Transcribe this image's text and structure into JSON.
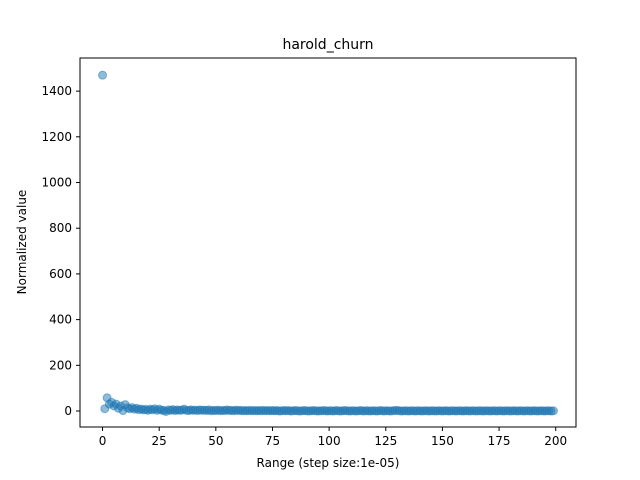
{
  "chart_data": {
    "type": "scatter",
    "title": "harold_churn",
    "xlabel": "Range (step size:1e-05)",
    "ylabel": "Normalized value",
    "xlim": [
      -9.95,
      208.95
    ],
    "ylim": [
      -70,
      1545
    ],
    "xticks": [
      0,
      25,
      50,
      75,
      100,
      125,
      150,
      175,
      200
    ],
    "yticks": [
      0,
      200,
      400,
      600,
      800,
      1000,
      1200,
      1400
    ],
    "grid": false,
    "point_color": "#1f77b4",
    "point_alpha": 0.5,
    "series": [
      {
        "points": [
          [
            0,
            1470
          ],
          [
            1,
            10
          ],
          [
            2,
            58
          ],
          [
            3,
            30
          ],
          [
            4,
            38
          ],
          [
            5,
            22
          ],
          [
            6,
            30
          ],
          [
            7,
            12
          ],
          [
            8,
            22
          ],
          [
            9,
            2
          ],
          [
            10,
            28
          ],
          [
            11,
            14
          ],
          [
            12,
            10
          ],
          [
            13,
            15
          ],
          [
            14,
            8
          ],
          [
            15,
            12
          ],
          [
            16,
            6
          ],
          [
            17,
            9
          ],
          [
            18,
            5
          ],
          [
            19,
            7
          ],
          [
            20,
            3
          ],
          [
            21,
            8
          ],
          [
            22,
            5
          ],
          [
            23,
            10
          ],
          [
            24,
            3
          ],
          [
            25,
            8
          ],
          [
            26,
            4
          ],
          [
            27,
            2
          ],
          [
            28,
            -2
          ],
          [
            29,
            5
          ],
          [
            30,
            3
          ],
          [
            31,
            6
          ],
          [
            32,
            2
          ],
          [
            33,
            5
          ],
          [
            34,
            3
          ],
          [
            35,
            4
          ],
          [
            36,
            8
          ],
          [
            37,
            3
          ],
          [
            38,
            2
          ],
          [
            39,
            5
          ],
          [
            40,
            3
          ],
          [
            41,
            4
          ],
          [
            42,
            2
          ],
          [
            43,
            5
          ],
          [
            44,
            3
          ],
          [
            45,
            4
          ],
          [
            46,
            2
          ],
          [
            47,
            5
          ],
          [
            48,
            1
          ],
          [
            49,
            3
          ],
          [
            50,
            2
          ],
          [
            51,
            4
          ],
          [
            52,
            1
          ],
          [
            53,
            3
          ],
          [
            54,
            2
          ],
          [
            55,
            5
          ],
          [
            56,
            2
          ],
          [
            57,
            3
          ],
          [
            58,
            1
          ],
          [
            59,
            4
          ],
          [
            60,
            2
          ],
          [
            61,
            3
          ],
          [
            62,
            1
          ],
          [
            63,
            2
          ],
          [
            64,
            1
          ],
          [
            65,
            3
          ],
          [
            66,
            1
          ],
          [
            67,
            2
          ],
          [
            68,
            1
          ],
          [
            69,
            2
          ],
          [
            70,
            1
          ],
          [
            71,
            3
          ],
          [
            72,
            1
          ],
          [
            73,
            2
          ],
          [
            74,
            1
          ],
          [
            75,
            2
          ],
          [
            76,
            1
          ],
          [
            77,
            2
          ],
          [
            78,
            0
          ],
          [
            79,
            1
          ],
          [
            80,
            2
          ],
          [
            81,
            1
          ],
          [
            82,
            2
          ],
          [
            83,
            0
          ],
          [
            84,
            1
          ],
          [
            85,
            2
          ],
          [
            86,
            1
          ],
          [
            87,
            0
          ],
          [
            88,
            1
          ],
          [
            89,
            2
          ],
          [
            90,
            1
          ],
          [
            91,
            0
          ],
          [
            92,
            1
          ],
          [
            93,
            2
          ],
          [
            94,
            1
          ],
          [
            95,
            0
          ],
          [
            96,
            1
          ],
          [
            97,
            1
          ],
          [
            98,
            2
          ],
          [
            99,
            0
          ],
          [
            100,
            1
          ],
          [
            101,
            1
          ],
          [
            102,
            0
          ],
          [
            103,
            2
          ],
          [
            104,
            1
          ],
          [
            105,
            0
          ],
          [
            106,
            1
          ],
          [
            107,
            2
          ],
          [
            108,
            1
          ],
          [
            109,
            0
          ],
          [
            110,
            1
          ],
          [
            111,
            1
          ],
          [
            112,
            0
          ],
          [
            113,
            1
          ],
          [
            114,
            2
          ],
          [
            115,
            0
          ],
          [
            116,
            1
          ],
          [
            117,
            1
          ],
          [
            118,
            0
          ],
          [
            119,
            1
          ],
          [
            120,
            1
          ],
          [
            121,
            0
          ],
          [
            122,
            1
          ],
          [
            123,
            2
          ],
          [
            124,
            0
          ],
          [
            125,
            1
          ],
          [
            126,
            1
          ],
          [
            127,
            0
          ],
          [
            128,
            1
          ],
          [
            129,
            2
          ],
          [
            130,
            3
          ],
          [
            131,
            1
          ],
          [
            132,
            0
          ],
          [
            133,
            1
          ],
          [
            134,
            1
          ],
          [
            135,
            0
          ],
          [
            136,
            1
          ],
          [
            137,
            1
          ],
          [
            138,
            0
          ],
          [
            139,
            1
          ],
          [
            140,
            1
          ],
          [
            141,
            0
          ],
          [
            142,
            1
          ],
          [
            143,
            1
          ],
          [
            144,
            0
          ],
          [
            145,
            1
          ],
          [
            146,
            1
          ],
          [
            147,
            0
          ],
          [
            148,
            1
          ],
          [
            149,
            1
          ],
          [
            150,
            0
          ],
          [
            151,
            1
          ],
          [
            152,
            1
          ],
          [
            153,
            0
          ],
          [
            154,
            1
          ],
          [
            155,
            1
          ],
          [
            156,
            0
          ],
          [
            157,
            1
          ],
          [
            158,
            1
          ],
          [
            159,
            0
          ],
          [
            160,
            1
          ],
          [
            161,
            1
          ],
          [
            162,
            0
          ],
          [
            163,
            1
          ],
          [
            164,
            1
          ],
          [
            165,
            0
          ],
          [
            166,
            1
          ],
          [
            167,
            1
          ],
          [
            168,
            0
          ],
          [
            169,
            1
          ],
          [
            170,
            1
          ],
          [
            171,
            0
          ],
          [
            172,
            1
          ],
          [
            173,
            1
          ],
          [
            174,
            0
          ],
          [
            175,
            1
          ],
          [
            176,
            1
          ],
          [
            177,
            0
          ],
          [
            178,
            1
          ],
          [
            179,
            1
          ],
          [
            180,
            0
          ],
          [
            181,
            1
          ],
          [
            182,
            1
          ],
          [
            183,
            0
          ],
          [
            184,
            1
          ],
          [
            185,
            1
          ],
          [
            186,
            0
          ],
          [
            187,
            1
          ],
          [
            188,
            1
          ],
          [
            189,
            0
          ],
          [
            190,
            1
          ],
          [
            191,
            1
          ],
          [
            192,
            0
          ],
          [
            193,
            1
          ],
          [
            194,
            1
          ],
          [
            195,
            0
          ],
          [
            196,
            1
          ],
          [
            197,
            1
          ],
          [
            198,
            0
          ],
          [
            199,
            1
          ]
        ]
      }
    ]
  }
}
